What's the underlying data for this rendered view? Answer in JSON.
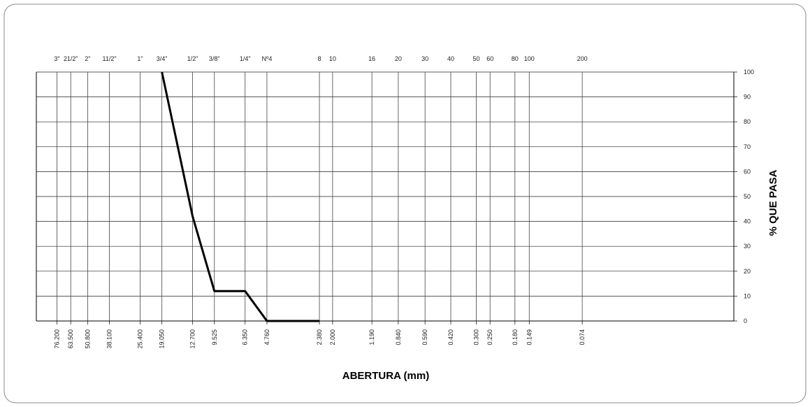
{
  "chart_data": {
    "type": "line",
    "xlabel": "ABERTURA (mm)",
    "ylabel": "% QUE PASA",
    "xscale": "log",
    "xlim": [
      100,
      0.01
    ],
    "ylim": [
      0,
      100
    ],
    "yticks": [
      0,
      10,
      20,
      30,
      40,
      50,
      60,
      70,
      80,
      90,
      100
    ],
    "xticks": [
      {
        "value": 76.2,
        "label": "76.200"
      },
      {
        "value": 63.5,
        "label": "63.500"
      },
      {
        "value": 50.8,
        "label": "50.800"
      },
      {
        "value": 38.1,
        "label": "38.100"
      },
      {
        "value": 25.4,
        "label": "25.400"
      },
      {
        "value": 19.05,
        "label": "19.050"
      },
      {
        "value": 12.7,
        "label": "12.700"
      },
      {
        "value": 9.525,
        "label": "9.525"
      },
      {
        "value": 6.35,
        "label": "6.350"
      },
      {
        "value": 4.76,
        "label": "4.760"
      },
      {
        "value": 2.38,
        "label": "2.380"
      },
      {
        "value": 2,
        "label": "2.000"
      },
      {
        "value": 1.19,
        "label": "1.190"
      },
      {
        "value": 0.84,
        "label": "0.840"
      },
      {
        "value": 0.59,
        "label": "0.590"
      },
      {
        "value": 0.42,
        "label": "0.420"
      },
      {
        "value": 0.3,
        "label": "0.300"
      },
      {
        "value": 0.25,
        "label": "0.250"
      },
      {
        "value": 0.18,
        "label": "0.180"
      },
      {
        "value": 0.149,
        "label": "0.149"
      },
      {
        "value": 0.074,
        "label": "0.074"
      }
    ],
    "sieve_labels": [
      "3\"",
      "21/2\"",
      "2\"",
      "11/2\"",
      "1\"",
      "3/4\"",
      "1/2\"",
      "3/8\"",
      "1/4\"",
      "Nº4",
      "8",
      "10",
      "16",
      "20",
      "30",
      "40",
      "50",
      "60",
      "80",
      "100",
      "200"
    ],
    "grid": true,
    "series": [
      {
        "color": "#000000",
        "x": [
          19.05,
          12.7,
          9.525,
          6.35,
          4.76,
          2.38
        ],
        "values": [
          100,
          42,
          12,
          12,
          0,
          0
        ]
      }
    ]
  }
}
